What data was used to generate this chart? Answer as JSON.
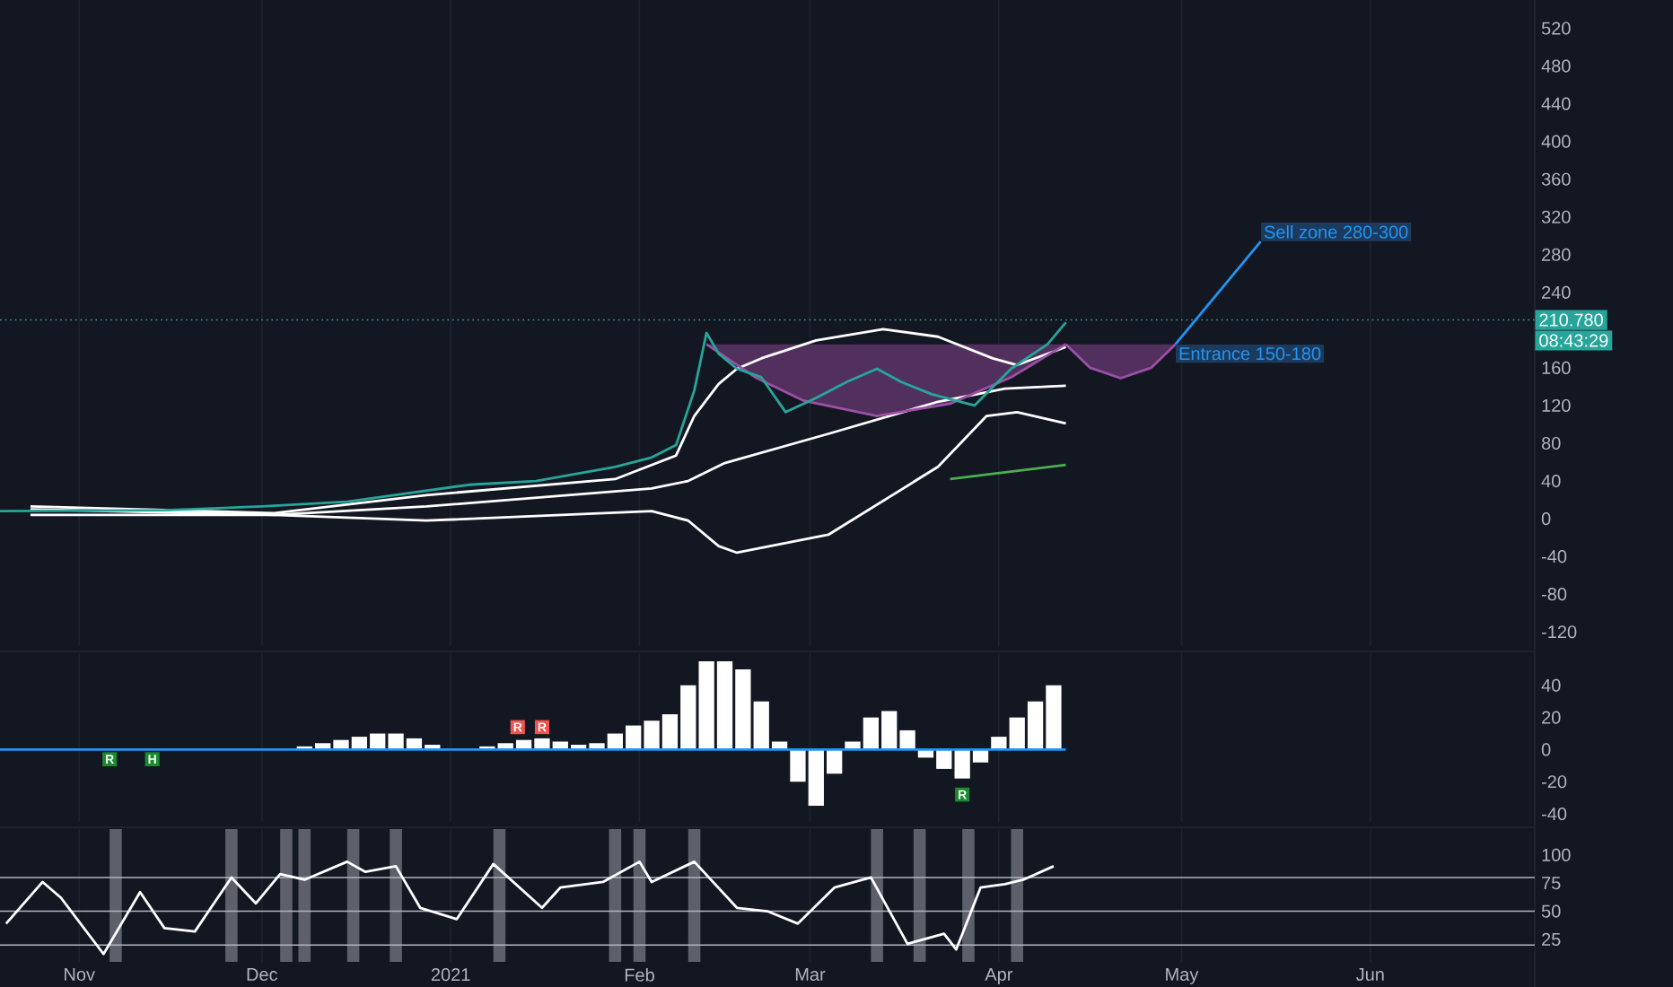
{
  "chart_data": [
    {
      "type": "line",
      "xlim": [
        "2020-10-19",
        "2021-06-28"
      ],
      "xticks": [
        "2020-11-01",
        "2020-12-01",
        "2021-01-01",
        "2021-02-01",
        "2021-03-01",
        "2021-04-01",
        "2021-05-01",
        "2021-06-01"
      ],
      "ylim": [
        -135,
        550
      ],
      "yticks": [
        -120,
        -80,
        -40,
        0,
        40,
        80,
        120,
        160,
        240,
        280,
        320,
        360,
        400,
        440,
        480,
        520
      ],
      "grid": "x",
      "tick_labels": "y",
      "series": [
        {
          "type": "line",
          "color": "#ffffff",
          "x": [
            "2020-10-24",
            "2020-12-03",
            "2020-12-28",
            "2021-01-28",
            "2021-02-07",
            "2021-02-10",
            "2021-02-14",
            "2021-02-17",
            "2021-02-21",
            "2021-03-02",
            "2021-03-13",
            "2021-03-22",
            "2021-03-31",
            "2021-04-04",
            "2021-04-12"
          ],
          "values": [
            13,
            6,
            25,
            42,
            67,
            109,
            143,
            159,
            170,
            189,
            201,
            193,
            170,
            163,
            182
          ]
        },
        {
          "type": "line",
          "color": "#ffffff",
          "x": [
            "2020-10-24",
            "2020-12-03",
            "2020-12-28",
            "2021-02-03",
            "2021-02-09",
            "2021-02-15",
            "2021-03-04",
            "2021-03-22",
            "2021-04-02",
            "2021-04-12"
          ],
          "values": [
            10,
            4,
            13,
            32,
            40,
            59,
            90,
            124,
            138,
            141
          ]
        },
        {
          "type": "line",
          "color": "#ffffff",
          "x": [
            "2020-10-24",
            "2020-12-03",
            "2020-12-28",
            "2021-02-03",
            "2021-02-09",
            "2021-02-14",
            "2021-02-17",
            "2021-03-04",
            "2021-03-22",
            "2021-03-30",
            "2021-04-04",
            "2021-04-12"
          ],
          "values": [
            4,
            4,
            -2,
            8,
            -2,
            -29,
            -36,
            -17,
            55,
            109,
            113,
            101
          ]
        },
        {
          "type": "line",
          "color": "#4caf50",
          "x": [
            "2021-03-24",
            "2021-04-12"
          ],
          "values": [
            42,
            57
          ]
        },
        {
          "type": "line",
          "color": "#9c4fa6",
          "x": [
            "2021-02-12",
            "2021-02-20",
            "2021-02-28",
            "2021-03-12",
            "2021-03-24",
            "2021-04-03",
            "2021-04-12"
          ],
          "values": [
            185,
            150,
            125,
            109,
            122,
            150,
            185
          ],
          "lower": [
            185,
            150,
            125,
            109,
            122,
            150,
            185
          ],
          "upper": [
            185,
            185,
            185,
            185,
            185,
            185,
            185
          ]
        },
        {
          "type": "line",
          "color": "#9c4fa6",
          "x": [
            "2021-04-12",
            "2021-04-16",
            "2021-04-21",
            "2021-04-26",
            "2021-04-30"
          ],
          "values": [
            185,
            160,
            149,
            160,
            185
          ],
          "lower": [
            185,
            160,
            149,
            160,
            185
          ],
          "upper": [
            185,
            185,
            185,
            185,
            185
          ]
        },
        {
          "type": "line",
          "color": "#26a69a",
          "x": [
            "2020-10-19",
            "2020-11-15",
            "2020-12-01",
            "2020-12-15",
            "2021-01-04",
            "2021-01-15",
            "2021-01-28",
            "2021-02-03",
            "2021-02-07",
            "2021-02-10",
            "2021-02-12",
            "2021-02-14",
            "2021-02-17",
            "2021-02-21",
            "2021-02-25",
            "2021-03-02",
            "2021-03-07",
            "2021-03-12",
            "2021-03-16",
            "2021-03-21",
            "2021-03-28",
            "2021-04-03",
            "2021-04-09",
            "2021-04-12"
          ],
          "values": [
            8,
            9,
            13,
            18,
            36,
            40,
            55,
            65,
            78,
            136,
            197,
            175,
            159,
            150,
            113,
            128,
            145,
            159,
            145,
            132,
            120,
            159,
            185,
            208
          ]
        },
        {
          "type": "line",
          "color": "#2196f3",
          "x": [
            "2021-04-30",
            "2021-05-14"
          ],
          "values": [
            185,
            294
          ]
        }
      ],
      "ref_lines": [
        {
          "axis": "y",
          "value": 210.78,
          "label": "210.780",
          "color": "#26a69a",
          "line_style": "dotted"
        }
      ],
      "annotations": [
        "08:43:29",
        {
          "text": "Sell zone 280-300",
          "x": "2021-05-14",
          "y": 294
        },
        {
          "text": "Entrance 150-180",
          "x": "2021-04-30",
          "y": 185
        }
      ]
    },
    {
      "type": "bar",
      "xlim": [
        "2020-10-19",
        "2021-06-28"
      ],
      "xticks": [
        "2020-11-01",
        "2020-12-01",
        "2021-01-01",
        "2021-02-01",
        "2021-03-01",
        "2021-04-01",
        "2021-05-01",
        "2021-06-01"
      ],
      "ylim": [
        -45,
        60
      ],
      "yticks": [
        -40,
        -20,
        0,
        20,
        40
      ],
      "grid": "x",
      "tick_labels": "y",
      "series": [
        {
          "type": "bar",
          "color": "#ffffff",
          "x": [
            "2020-12-08",
            "2020-12-11",
            "2020-12-14",
            "2020-12-17",
            "2020-12-20",
            "2020-12-23",
            "2020-12-26",
            "2020-12-29",
            "2021-01-01",
            "2021-01-07",
            "2021-01-10",
            "2021-01-13",
            "2021-01-16",
            "2021-01-19",
            "2021-01-22",
            "2021-01-25",
            "2021-01-28",
            "2021-01-31",
            "2021-02-03",
            "2021-02-06",
            "2021-02-09",
            "2021-02-12",
            "2021-02-15",
            "2021-02-18",
            "2021-02-21",
            "2021-02-24",
            "2021-02-27",
            "2021-03-02",
            "2021-03-05",
            "2021-03-08",
            "2021-03-11",
            "2021-03-14",
            "2021-03-17",
            "2021-03-20",
            "2021-03-23",
            "2021-03-26",
            "2021-03-29",
            "2021-04-01",
            "2021-04-04",
            "2021-04-07",
            "2021-04-10"
          ],
          "values": [
            2,
            4,
            6,
            8,
            10,
            10,
            7,
            3,
            0,
            2,
            4,
            6,
            7,
            5,
            3,
            4,
            10,
            15,
            18,
            22,
            40,
            55,
            55,
            50,
            30,
            5,
            -20,
            -35,
            -15,
            5,
            20,
            24,
            12,
            -5,
            -12,
            -18,
            -8,
            8,
            20,
            30,
            40
          ]
        },
        {
          "type": "line",
          "color": "#2196f3",
          "x": [
            "2020-10-19",
            "2021-04-12"
          ],
          "values": [
            0,
            0
          ]
        }
      ],
      "annotations": [
        {
          "text": "R",
          "x": "2020-11-06",
          "y": -6
        },
        {
          "text": "H",
          "x": "2020-11-13",
          "y": -6
        },
        {
          "text": "R",
          "x": "2021-01-12",
          "y": 14
        },
        {
          "text": "R",
          "x": "2021-01-16",
          "y": 14
        },
        {
          "text": "R",
          "x": "2021-03-26",
          "y": -28
        }
      ]
    },
    {
      "type": "line",
      "xlim": [
        "2020-10-19",
        "2021-06-28"
      ],
      "xticks": [
        {
          "value": "2020-11-01",
          "label": "Nov"
        },
        {
          "value": "2020-12-01",
          "label": "Dec"
        },
        {
          "value": "2021-01-01",
          "label": "2021"
        },
        {
          "value": "2021-02-01",
          "label": "Feb"
        },
        {
          "value": "2021-03-01",
          "label": "Mar"
        },
        {
          "value": "2021-04-01",
          "label": "Apr"
        },
        {
          "value": "2021-05-01",
          "label": "May"
        },
        {
          "value": "2021-06-01",
          "label": "Jun"
        }
      ],
      "ylim": [
        5,
        123
      ],
      "yticks": [
        25,
        50,
        75,
        100
      ],
      "grid": "x",
      "bands": [
        {
          "axis": "x",
          "from": "2020-11-06",
          "to": "2020-11-08",
          "color": "#5d606b"
        },
        {
          "axis": "x",
          "from": "2020-11-25",
          "to": "2020-11-27",
          "color": "#5d606b"
        },
        {
          "axis": "x",
          "from": "2020-12-04",
          "to": "2020-12-06",
          "color": "#5d606b"
        },
        {
          "axis": "x",
          "from": "2020-12-07",
          "to": "2020-12-09",
          "color": "#5d606b"
        },
        {
          "axis": "x",
          "from": "2020-12-15",
          "to": "2020-12-17",
          "color": "#5d606b"
        },
        {
          "axis": "x",
          "from": "2020-12-22",
          "to": "2020-12-24",
          "color": "#5d606b"
        },
        {
          "axis": "x",
          "from": "2021-01-08",
          "to": "2021-01-10",
          "color": "#5d606b"
        },
        {
          "axis": "x",
          "from": "2021-01-27",
          "to": "2021-01-29",
          "color": "#5d606b"
        },
        {
          "axis": "x",
          "from": "2021-01-31",
          "to": "2021-02-02",
          "color": "#5d606b"
        },
        {
          "axis": "x",
          "from": "2021-02-09",
          "to": "2021-02-11",
          "color": "#5d606b"
        },
        {
          "axis": "x",
          "from": "2021-03-11",
          "to": "2021-03-13",
          "color": "#5d606b"
        },
        {
          "axis": "x",
          "from": "2021-03-18",
          "to": "2021-03-20",
          "color": "#5d606b"
        },
        {
          "axis": "x",
          "from": "2021-03-26",
          "to": "2021-03-28",
          "color": "#5d606b"
        },
        {
          "axis": "x",
          "from": "2021-04-03",
          "to": "2021-04-05",
          "color": "#5d606b"
        }
      ],
      "ref_lines": [
        {
          "axis": "y",
          "value": 80,
          "color": "#b2b5be"
        },
        {
          "axis": "y",
          "value": 50,
          "color": "#b2b5be"
        },
        {
          "axis": "y",
          "value": 20,
          "color": "#b2b5be"
        }
      ],
      "series": [
        {
          "type": "line",
          "color": "#ffffff",
          "x": [
            "2020-10-20",
            "2020-10-26",
            "2020-10-29",
            "2020-11-05",
            "2020-11-11",
            "2020-11-15",
            "2020-11-20",
            "2020-11-26",
            "2020-11-30",
            "2020-12-04",
            "2020-12-08",
            "2020-12-15",
            "2020-12-18",
            "2020-12-23",
            "2020-12-27",
            "2021-01-02",
            "2021-01-08",
            "2021-01-16",
            "2021-01-19",
            "2021-01-26",
            "2021-02-01",
            "2021-02-03",
            "2021-02-10",
            "2021-02-17",
            "2021-02-22",
            "2021-02-27",
            "2021-03-05",
            "2021-03-11",
            "2021-03-17",
            "2021-03-23",
            "2021-03-25",
            "2021-03-29",
            "2021-04-02",
            "2021-04-05",
            "2021-04-10"
          ],
          "values": [
            39,
            76,
            62,
            12,
            67,
            35,
            32,
            80,
            57,
            83,
            78,
            94,
            85,
            90,
            53,
            43,
            92,
            53,
            71,
            76,
            94,
            76,
            94,
            53,
            50,
            39,
            71,
            80,
            21,
            30,
            16,
            71,
            74,
            78,
            90
          ]
        }
      ]
    }
  ]
}
